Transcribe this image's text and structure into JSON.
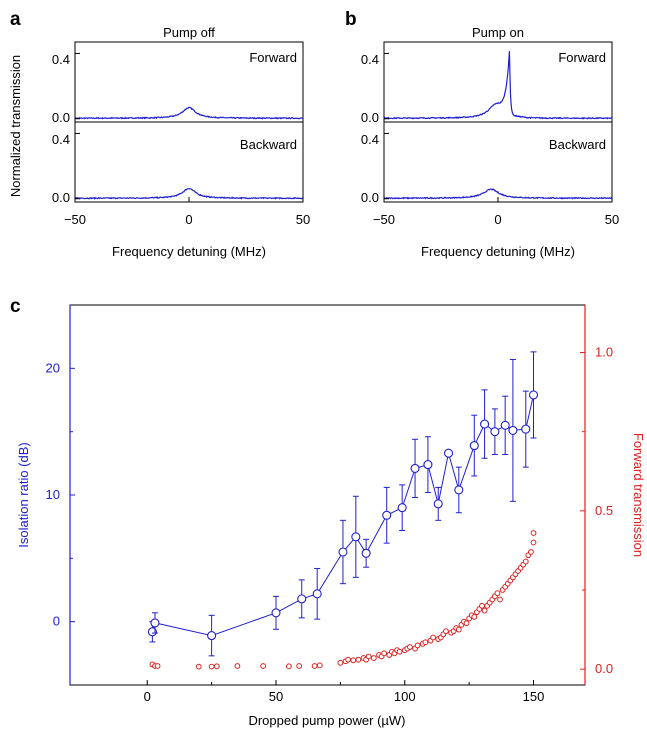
{
  "colors": {
    "blue": "#2020d0",
    "red": "#e02020",
    "axis": "#000000"
  },
  "panel_a": {
    "letter": "a",
    "title": "Pump off",
    "ylabel": "Normalized transmission",
    "xlabel": "Frequency detuning (MHz)",
    "x_ticks": [
      "−50",
      "0",
      "50"
    ],
    "y_ticks": [
      "0.0",
      "0.4"
    ],
    "forward_label": "Forward",
    "backward_label": "Backward"
  },
  "panel_b": {
    "letter": "b",
    "title": "Pump on",
    "xlabel": "Frequency detuning (MHz)",
    "x_ticks": [
      "−50",
      "0",
      "50"
    ],
    "y_ticks": [
      "0.0",
      "0.4"
    ],
    "forward_label": "Forward",
    "backward_label": "Backward"
  },
  "panel_c": {
    "letter": "c",
    "xlabel": "Dropped pump power (µW)",
    "ylabel_left": "Isolation ratio (dB)",
    "ylabel_right": "Forward transmission",
    "x_ticks": [
      "0",
      "50",
      "100",
      "150"
    ],
    "y_left_ticks": [
      "0",
      "10",
      "20"
    ],
    "y_right_ticks": [
      "0.0",
      "0.5",
      "1.0"
    ]
  },
  "chart_data": [
    {
      "type": "line",
      "panel": "a",
      "xlim": [
        -50,
        50
      ],
      "ylim": [
        0,
        0.5
      ],
      "series": [
        {
          "name": "Forward",
          "peak_x": 0,
          "peak_y": 0.065,
          "width": 3.5,
          "baseline": 0.003
        },
        {
          "name": "Backward",
          "peak_x": 0,
          "peak_y": 0.06,
          "width": 3.5,
          "baseline": 0.003
        }
      ]
    },
    {
      "type": "line",
      "panel": "b",
      "xlim": [
        -50,
        50
      ],
      "ylim": [
        0,
        0.5
      ],
      "series": [
        {
          "name": "Forward",
          "peak_x": 5,
          "peak_y": 0.43,
          "shoulder_x": -1,
          "shoulder_y": 0.08,
          "baseline": 0.003
        },
        {
          "name": "Backward",
          "peak_x": -3,
          "peak_y": 0.055,
          "width": 4,
          "baseline": 0.003
        }
      ]
    },
    {
      "type": "scatter",
      "panel": "c",
      "xlim": [
        -30,
        170
      ],
      "ylim_left": [
        -5,
        25
      ],
      "ylim_right": [
        -0.05,
        1.15
      ],
      "isolation": [
        {
          "x": 2,
          "y": -0.8,
          "err": 0.8
        },
        {
          "x": 3,
          "y": -0.1,
          "err": 0.8
        },
        {
          "x": 25,
          "y": -1.1,
          "err": 1.6
        },
        {
          "x": 50,
          "y": 0.7,
          "err": 1.3
        },
        {
          "x": 60,
          "y": 1.8,
          "err": 1.5
        },
        {
          "x": 66,
          "y": 2.2,
          "err": 2.0
        },
        {
          "x": 76,
          "y": 5.5,
          "err": 2.5
        },
        {
          "x": 81,
          "y": 6.7,
          "err": 3.2
        },
        {
          "x": 85,
          "y": 5.4,
          "err": 1.1
        },
        {
          "x": 93,
          "y": 8.4,
          "err": 2.2
        },
        {
          "x": 99,
          "y": 9.0,
          "err": 1.8
        },
        {
          "x": 104,
          "y": 12.1,
          "err": 2.3
        },
        {
          "x": 109,
          "y": 12.4,
          "err": 2.2
        },
        {
          "x": 113,
          "y": 9.3,
          "err": 1.3
        },
        {
          "x": 117,
          "y": 13.3,
          "err": 0.0
        },
        {
          "x": 121,
          "y": 10.4,
          "err": 1.8
        },
        {
          "x": 127,
          "y": 13.9,
          "err": 2.4
        },
        {
          "x": 131,
          "y": 15.6,
          "err": 2.7
        },
        {
          "x": 135,
          "y": 15.0,
          "err": 1.8
        },
        {
          "x": 139,
          "y": 15.5,
          "err": 2.3
        },
        {
          "x": 142,
          "y": 15.1,
          "err": 5.6
        },
        {
          "x": 147,
          "y": 15.2,
          "err": 3.0
        },
        {
          "x": 150,
          "y": 17.9,
          "err": 3.4
        }
      ],
      "transmission_x": [
        2,
        3,
        4,
        20,
        25,
        27,
        35,
        45,
        55,
        59,
        65,
        67,
        75,
        77,
        78,
        80,
        82,
        84,
        85,
        86,
        88,
        90,
        91,
        92,
        94,
        95,
        96,
        97,
        98,
        100,
        101,
        102,
        104,
        105,
        107,
        108,
        110,
        111,
        113,
        114,
        115,
        116,
        118,
        119,
        120,
        121,
        122,
        123,
        124,
        125,
        126,
        127,
        128,
        129,
        130,
        131,
        132,
        133,
        134,
        135,
        136,
        137,
        138,
        139,
        140,
        141,
        142,
        143,
        144,
        145,
        146,
        147,
        148,
        149,
        150,
        150
      ],
      "transmission_y": [
        0.015,
        0.01,
        0.01,
        0.008,
        0.008,
        0.009,
        0.01,
        0.01,
        0.009,
        0.01,
        0.01,
        0.012,
        0.02,
        0.025,
        0.03,
        0.028,
        0.03,
        0.035,
        0.03,
        0.04,
        0.035,
        0.045,
        0.04,
        0.05,
        0.045,
        0.055,
        0.05,
        0.06,
        0.055,
        0.06,
        0.065,
        0.07,
        0.065,
        0.075,
        0.08,
        0.085,
        0.09,
        0.1,
        0.095,
        0.1,
        0.11,
        0.12,
        0.115,
        0.12,
        0.13,
        0.125,
        0.14,
        0.15,
        0.145,
        0.16,
        0.17,
        0.165,
        0.18,
        0.19,
        0.2,
        0.185,
        0.2,
        0.21,
        0.22,
        0.23,
        0.24,
        0.22,
        0.25,
        0.26,
        0.27,
        0.28,
        0.29,
        0.3,
        0.31,
        0.32,
        0.33,
        0.34,
        0.36,
        0.37,
        0.4,
        0.43
      ]
    }
  ]
}
